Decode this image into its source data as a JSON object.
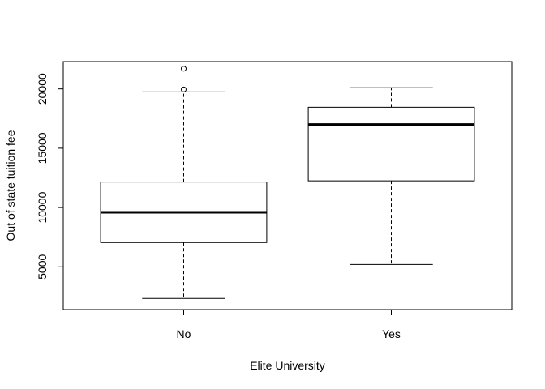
{
  "chart_data": {
    "type": "boxplot",
    "title": "",
    "xlabel": "Elite University",
    "ylabel": "Out of state tuition fee",
    "ylim": [
      1400,
      22300
    ],
    "yticks": [
      5000,
      10000,
      15000,
      20000
    ],
    "grid": false,
    "categories": [
      "No",
      "Yes"
    ],
    "boxes": [
      {
        "category": "No",
        "whisker_low": 2340,
        "q1": 7050,
        "median": 9600,
        "q3": 12150,
        "whisker_high": 19750,
        "outliers": [
          19950,
          21700
        ]
      },
      {
        "category": "Yes",
        "whisker_low": 5200,
        "q1": 12250,
        "median": 17000,
        "q3": 18450,
        "whisker_high": 20100,
        "outliers": []
      }
    ]
  }
}
